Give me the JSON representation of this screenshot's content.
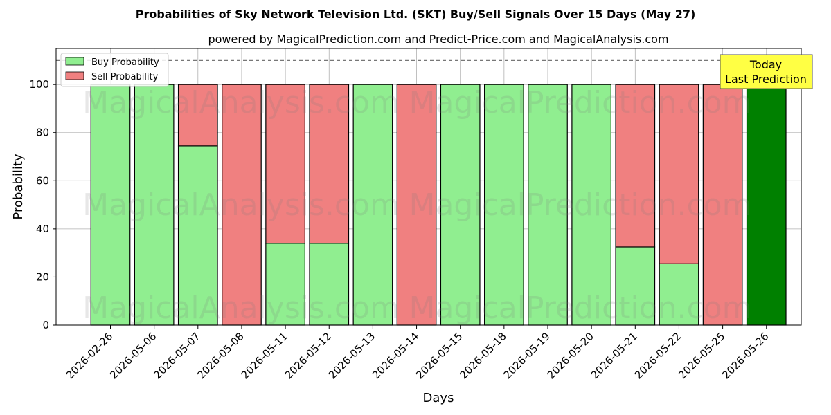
{
  "chart_data": {
    "type": "bar",
    "stacked": true,
    "title": "Probabilities of Sky Network Television Ltd. (SKT) Buy/Sell Signals Over 15 Days (May 27)",
    "subtitle": "powered by MagicalPrediction.com and Predict-Price.com and MagicalAnalysis.com",
    "xlabel": "Days",
    "ylabel": "Probability",
    "ylim": [
      0,
      115
    ],
    "yticks": [
      0,
      20,
      40,
      60,
      80,
      100
    ],
    "grid": true,
    "legend_placement": "top-left",
    "reference_line": 110,
    "categories": [
      "2026-02-26",
      "2026-05-06",
      "2026-05-07",
      "2026-05-08",
      "2026-05-11",
      "2026-05-12",
      "2026-05-13",
      "2026-05-14",
      "2026-05-15",
      "2026-05-18",
      "2026-05-19",
      "2026-05-20",
      "2026-05-21",
      "2026-05-22",
      "2026-05-25",
      "2026-05-26"
    ],
    "series": [
      {
        "name": "Buy Probability",
        "color": "#90ee90",
        "values": [
          100,
          100,
          74.5,
          0,
          34,
          34,
          100,
          0,
          100,
          100,
          100,
          100,
          32.5,
          25.5,
          0,
          100
        ]
      },
      {
        "name": "Sell Probability",
        "color": "#f08080",
        "values": [
          0,
          0,
          25.5,
          100,
          66,
          66,
          0,
          100,
          0,
          0,
          0,
          0,
          67.5,
          74.5,
          100,
          0
        ]
      }
    ],
    "highlight": {
      "index": 15,
      "color": "#008000"
    },
    "annotation": {
      "line1": "Today",
      "line2": "Last Prediction",
      "background": "#ffff44"
    },
    "watermarks": [
      "MagicalAnalysis.com",
      "MagicalPrediction.com"
    ]
  }
}
